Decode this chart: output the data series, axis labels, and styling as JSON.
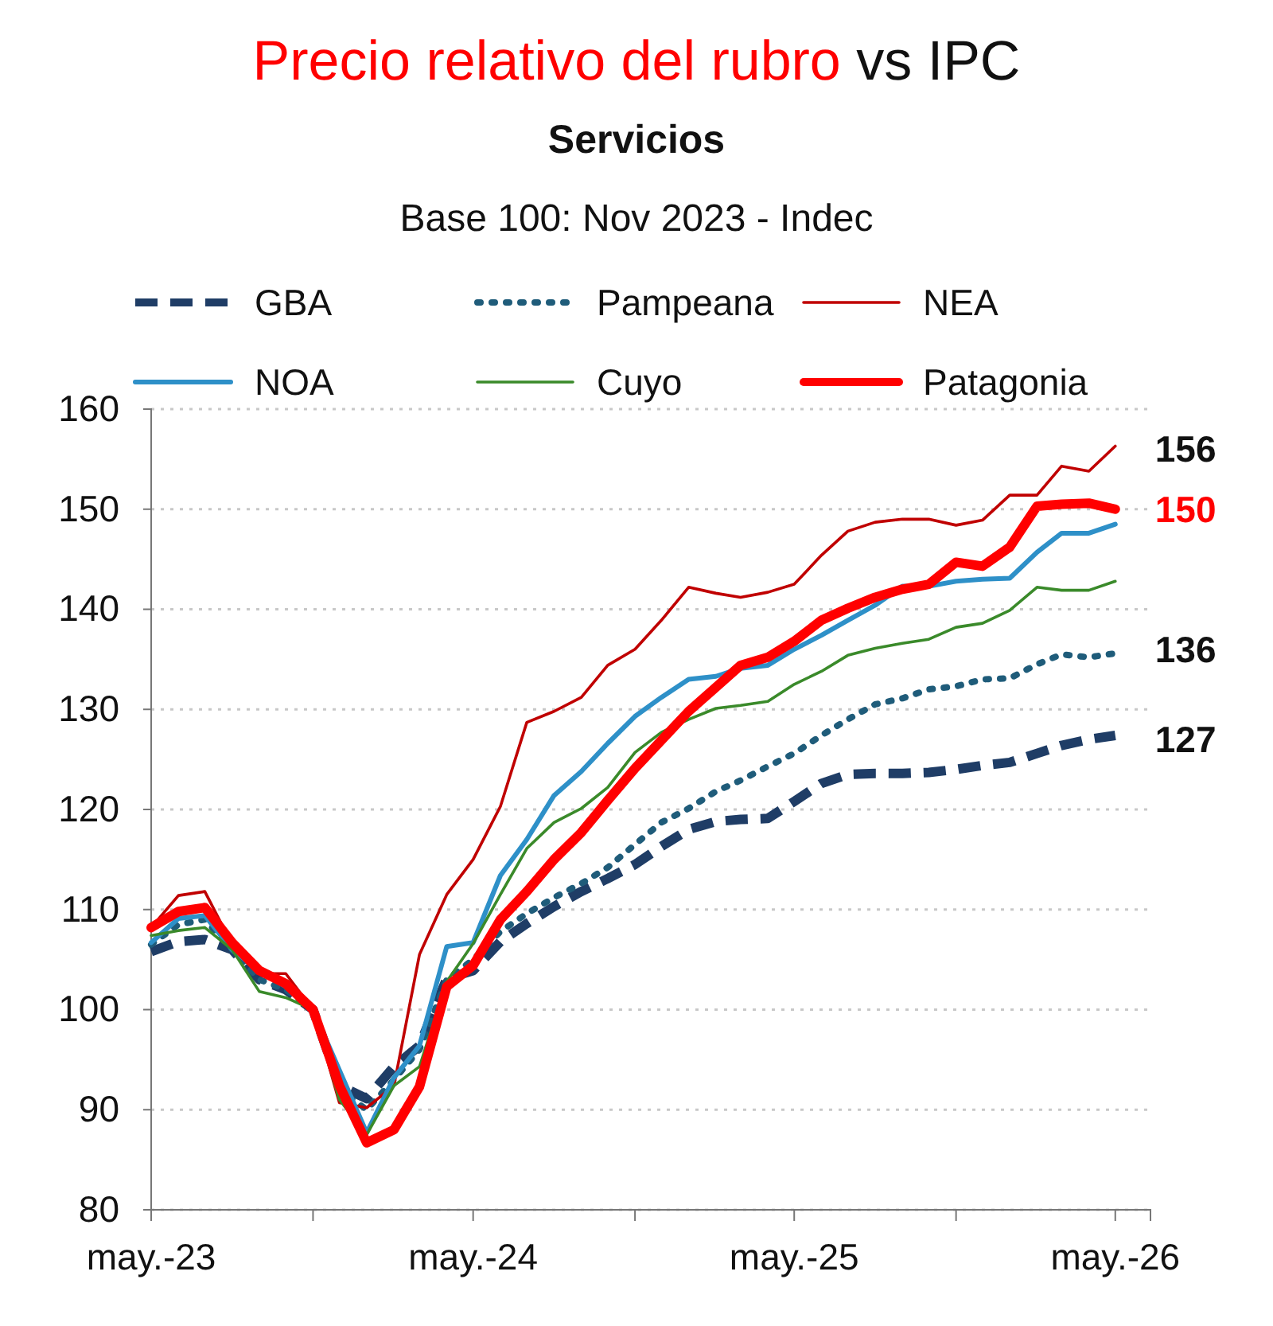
{
  "chart_data": {
    "type": "line",
    "title": "Precio relativo del rubro vs IPC",
    "subtitle": "Servicios\nBase 100: Nov 2023 - Indec",
    "x": [
      "2023-05",
      "2023-06",
      "2023-07",
      "2023-08",
      "2023-09",
      "2023-10",
      "2023-11",
      "2023-12",
      "2024-01",
      "2024-02",
      "2024-03",
      "2024-04",
      "2024-05",
      "2024-06",
      "2024-07",
      "2024-08",
      "2024-09",
      "2024-10",
      "2024-11",
      "2024-12",
      "2025-01",
      "2025-02",
      "2025-03",
      "2025-04",
      "2025-05",
      "2025-06",
      "2025-07",
      "2025-08",
      "2025-09",
      "2025-10",
      "2025-11",
      "2025-12",
      "2026-01",
      "2026-02",
      "2026-03",
      "2026-04",
      "2026-05"
    ],
    "series": [
      {
        "name": "GBA",
        "color": "#1f3d66",
        "line_style": "dashed",
        "values": [
          105.8,
          106.8,
          107,
          106,
          103,
          102,
          100,
          92.4,
          91.1,
          94.3,
          96.4,
          103.1,
          103.9,
          106.8,
          108.6,
          110.3,
          111.8,
          113.1,
          114.5,
          116.3,
          118,
          118.8,
          119,
          119.1,
          120.8,
          122.6,
          123.5,
          123.6,
          123.6,
          123.7,
          124,
          124.4,
          124.7,
          125.6,
          126.4,
          127,
          127.4
        ]
      },
      {
        "name": "Pampeana",
        "color": "#1f5c7a",
        "line_style": "dotted",
        "values": [
          106.5,
          108.5,
          109,
          106,
          103,
          102,
          100,
          92,
          90,
          93,
          96,
          103,
          105,
          107.8,
          109.6,
          111.2,
          112.6,
          114.2,
          116.5,
          118.7,
          120.1,
          121.8,
          122.9,
          124.3,
          125.6,
          127.4,
          129,
          130.5,
          131.1,
          132,
          132.3,
          133,
          133.1,
          134.5,
          135.5,
          135.2,
          135.6
        ]
      },
      {
        "name": "NEA",
        "color": "#c00000",
        "line_style": "solid",
        "values": [
          108.2,
          111.4,
          111.8,
          106.5,
          103.6,
          103.6,
          100,
          90.7,
          90.2,
          92.4,
          105.5,
          111.5,
          115,
          120.3,
          128.7,
          129.8,
          131.2,
          134.4,
          136,
          138.9,
          142.2,
          141.6,
          141.2,
          141.7,
          142.5,
          145.4,
          147.8,
          148.7,
          149,
          149,
          148.4,
          148.9,
          151.4,
          151.4,
          154.3,
          153.8,
          156.3
        ]
      },
      {
        "name": "NOA",
        "color": "#2e90c8",
        "line_style": "solid",
        "values": [
          106.7,
          109.1,
          109.4,
          106,
          103.9,
          102.3,
          100,
          null,
          87.7,
          93.2,
          96.4,
          106.3,
          106.7,
          113.4,
          117,
          121.4,
          123.8,
          126.6,
          129.3,
          131.2,
          133,
          133.3,
          134.1,
          134.4,
          136,
          137.4,
          138.9,
          140.4,
          142.3,
          142.3,
          142.8,
          143,
          143.1,
          145.7,
          147.6,
          147.6,
          148.5
        ]
      },
      {
        "name": "Cuyo",
        "color": "#3a8a2a",
        "line_style": "solid",
        "values": [
          107.4,
          107.9,
          108.2,
          106,
          101.8,
          101.2,
          100,
          91,
          87.5,
          92.4,
          94.3,
          102.8,
          106.6,
          111.5,
          116.1,
          118.7,
          120.1,
          122.2,
          125.7,
          127.7,
          129,
          130.1,
          130.4,
          130.8,
          132.5,
          133.8,
          135.4,
          136.1,
          136.6,
          137,
          138.2,
          138.6,
          139.9,
          142.2,
          141.9,
          141.9,
          142.8
        ]
      },
      {
        "name": "Patagonia",
        "color": "#ff0000",
        "line_style": "solid",
        "values": [
          108.2,
          109.8,
          110.2,
          106.7,
          103.9,
          102.6,
          100,
          92.4,
          86.7,
          88,
          92.3,
          102.3,
          104.4,
          109,
          111.8,
          115,
          117.7,
          120.9,
          124.1,
          126.9,
          129.8,
          132.2,
          134.4,
          135.2,
          136.8,
          138.9,
          140.1,
          141.2,
          142,
          142.5,
          144.7,
          144.3,
          146.2,
          150.3,
          150.5,
          150.6,
          150
        ]
      }
    ],
    "xlim": [
      "2023-05",
      "2026-06-10"
    ],
    "xticks": [
      {
        "value": "2023-05",
        "label": "may.-23"
      },
      {
        "value": "2023-11",
        "label": null
      },
      {
        "value": "2024-05",
        "label": "may.-24"
      },
      {
        "value": "2024-11",
        "label": null
      },
      {
        "value": "2025-05",
        "label": "may.-25"
      },
      {
        "value": "2025-11",
        "label": null
      },
      {
        "value": "2026-05",
        "label": "may.-26"
      }
    ],
    "ylim": [
      80,
      160
    ],
    "yticks": [
      80,
      90,
      100,
      110,
      120,
      130,
      140,
      150,
      160
    ],
    "grid": "y",
    "legend": "top",
    "marker": "none",
    "annotations": [
      {
        "text": "156",
        "x": "2026-05",
        "y": 156
      },
      {
        "text": "150",
        "x": "2026-05",
        "y": 150
      },
      {
        "text": "136",
        "x": "2026-05",
        "y": 136
      },
      {
        "text": "127",
        "x": "2026-05",
        "y": 127
      }
    ]
  }
}
